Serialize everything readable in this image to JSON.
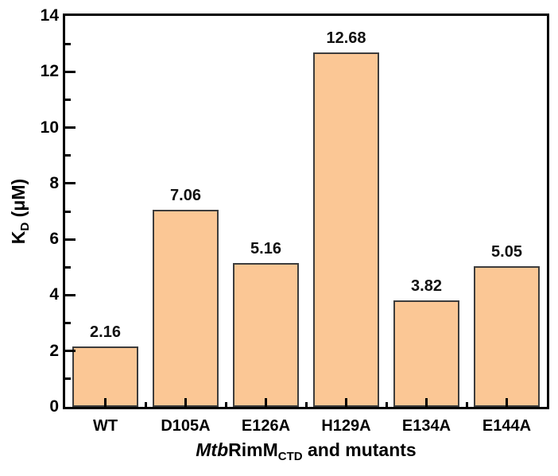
{
  "chart_data": {
    "type": "bar",
    "categories": [
      "WT",
      "D105A",
      "E126A",
      "H129A",
      "E134A",
      "E144A"
    ],
    "values": [
      2.16,
      7.06,
      5.16,
      12.68,
      3.82,
      5.05
    ],
    "value_labels": [
      "2.16",
      "7.06",
      "5.16",
      "12.68",
      "3.82",
      "5.05"
    ],
    "ylabel": {
      "main": "K",
      "subscript": "D",
      "suffix": " (μM)"
    },
    "xlabel": {
      "italic_prefix": "Mtb",
      "main": "RimM",
      "subscript": "CTD",
      "suffix": " and mutants"
    },
    "ylim": [
      0,
      14
    ],
    "y_major_ticks": [
      0,
      2,
      4,
      6,
      8,
      10,
      12,
      14
    ],
    "y_minor_ticks": [
      1,
      3,
      5,
      7,
      9,
      11,
      13
    ],
    "grid": false,
    "legend": "none",
    "bar_fill": "#FBC795",
    "bar_border": "#3d3d3d",
    "axis_color": "#000000",
    "background": "#ffffff",
    "bar_width_fraction": 0.82
  }
}
